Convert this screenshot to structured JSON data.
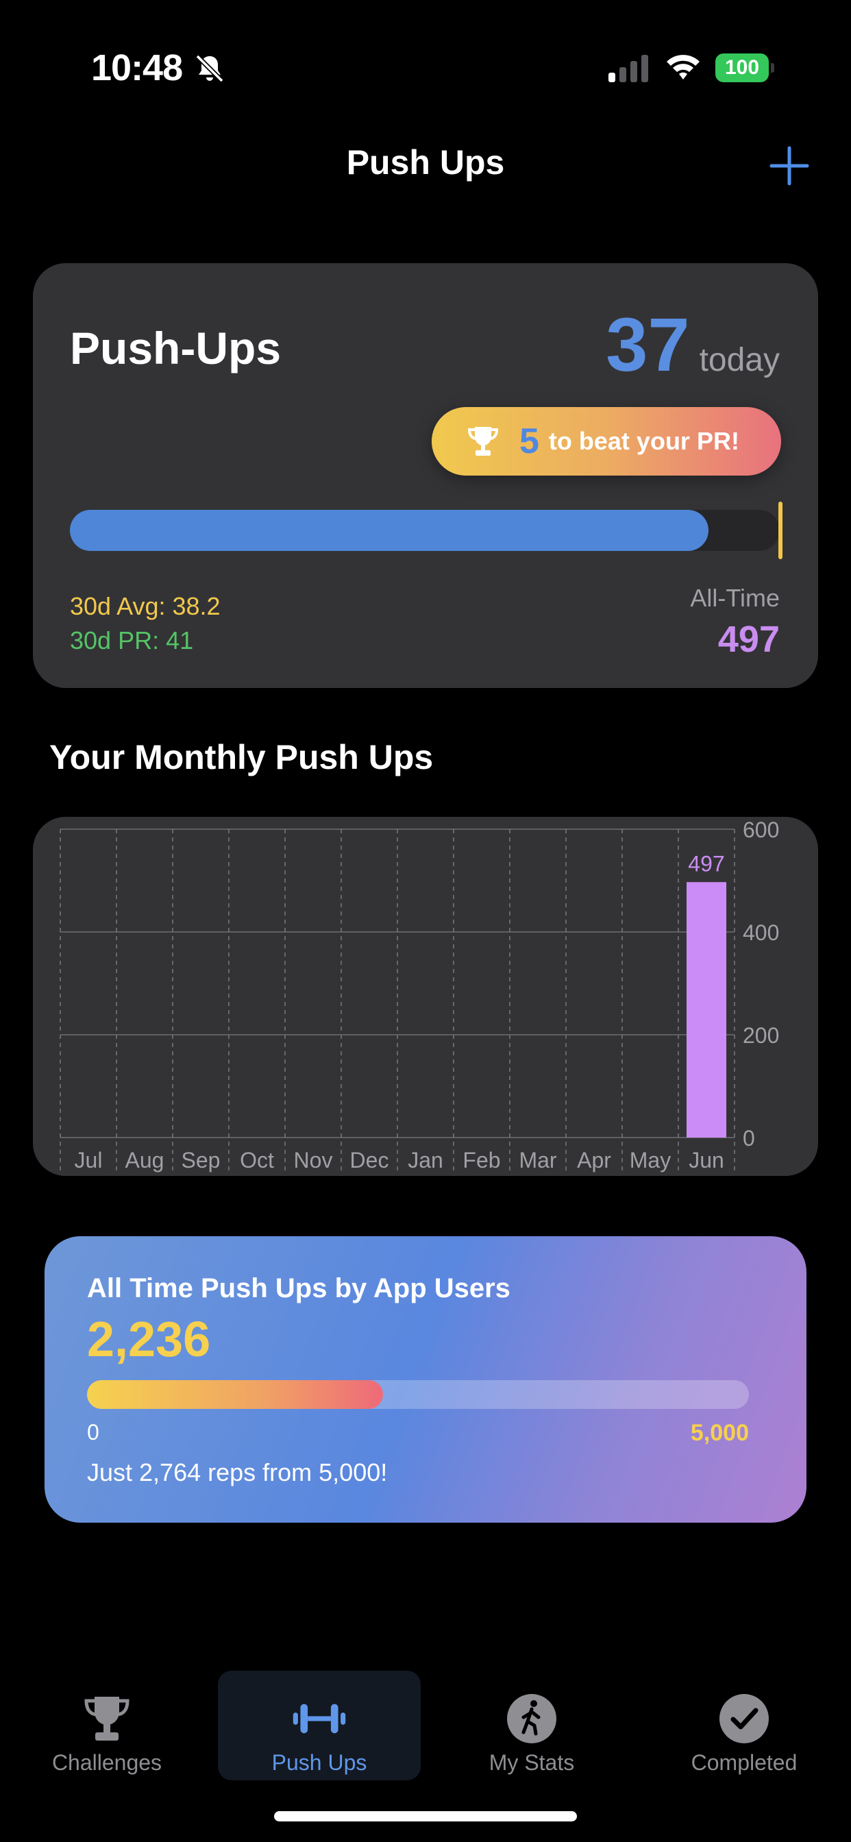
{
  "status_bar": {
    "time": "10:48",
    "battery": "100"
  },
  "nav": {
    "title": "Push Ups"
  },
  "summary": {
    "title": "Push-Ups",
    "today_count": "37",
    "today_label": "today",
    "pr_remaining": "5",
    "pr_text": "to beat your PR!",
    "progress_fraction": 0.9,
    "avg_30d": "30d Avg: 38.2",
    "pr_30d": "30d PR: 41",
    "alltime_label": "All-Time",
    "alltime_value": "497"
  },
  "monthly": {
    "title": "Your Monthly Push Ups"
  },
  "chart_data": {
    "type": "bar",
    "categories": [
      "Jul",
      "Aug",
      "Sep",
      "Oct",
      "Nov",
      "Dec",
      "Jan",
      "Feb",
      "Mar",
      "Apr",
      "May",
      "Jun"
    ],
    "values": [
      0,
      0,
      0,
      0,
      0,
      0,
      0,
      0,
      0,
      0,
      0,
      497
    ],
    "data_labels": [
      "",
      "",
      "",
      "",
      "",
      "",
      "",
      "",
      "",
      "",
      "",
      "497"
    ],
    "ylim": [
      0,
      600
    ],
    "yticks": [
      "0",
      "200",
      "400",
      "600"
    ],
    "title": "",
    "xlabel": "",
    "ylabel": "",
    "bar_color": "#cc8cf8",
    "grid": true
  },
  "community": {
    "title": "All Time Push Ups by App Users",
    "value": "2,236",
    "progress_fraction": 0.4472,
    "min_label": "0",
    "max_label": "5,000",
    "message": "Just 2,764 reps from 5,000!"
  },
  "tabs": [
    {
      "label": "Challenges",
      "icon": "trophy-icon",
      "active": false
    },
    {
      "label": "Push Ups",
      "icon": "dumbbell-icon",
      "active": true
    },
    {
      "label": "My Stats",
      "icon": "walking-figure-icon",
      "active": false
    },
    {
      "label": "Completed",
      "icon": "checkmark-circle-icon",
      "active": false
    }
  ],
  "colors": {
    "accent_blue": "#4f86d8",
    "gold": "#f2c94c",
    "green": "#55c466",
    "purple": "#c98df0"
  }
}
